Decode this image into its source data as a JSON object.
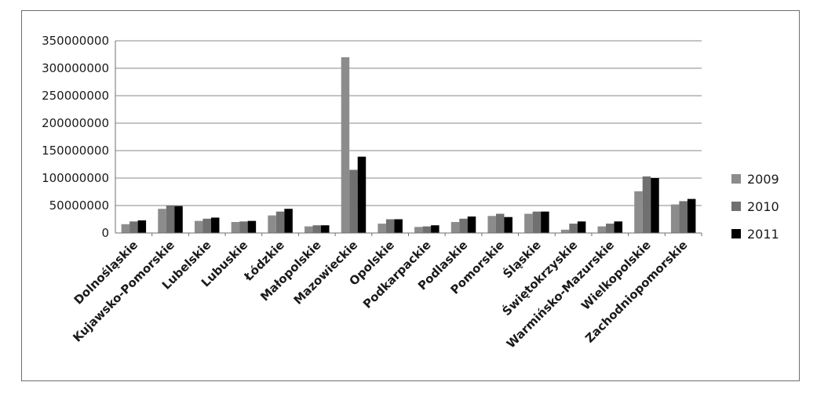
{
  "chart_data": {
    "type": "bar",
    "title": "",
    "xlabel": "",
    "ylabel": "",
    "ylim": [
      0,
      350000000
    ],
    "yticks": [
      "0",
      "50000000",
      "100000000",
      "150000000",
      "200000000",
      "250000000",
      "300000000",
      "350000000"
    ],
    "grid": true,
    "legend_position": "right",
    "categories": [
      "Dolnośląskie",
      "Kujawsko-Pomorskie",
      "Lubelskie",
      "Lubuskie",
      "Łódzkie",
      "Małopolskie",
      "Mazowieckie",
      "Opolskie",
      "Podkarpackie",
      "Podlaskie",
      "Pomorskie",
      "Śląskie",
      "Świętokrzyskie",
      "Warmińsko-Mazurskie",
      "Wielkopolskie",
      "Zachodniopomorskie"
    ],
    "series": [
      {
        "name": "2009",
        "color": "#8c8c8c",
        "values": [
          16000000,
          44000000,
          22000000,
          20000000,
          32000000,
          12000000,
          320000000,
          17000000,
          11000000,
          20000000,
          31000000,
          35000000,
          6000000,
          12000000,
          76000000,
          52000000
        ]
      },
      {
        "name": "2010",
        "color": "#707070",
        "values": [
          21000000,
          50000000,
          26000000,
          21000000,
          39000000,
          14000000,
          115000000,
          25000000,
          12000000,
          26000000,
          35000000,
          39000000,
          17000000,
          17000000,
          103000000,
          58000000
        ]
      },
      {
        "name": "2011",
        "color": "#000000",
        "values": [
          23000000,
          49000000,
          28000000,
          22000000,
          44000000,
          14000000,
          139000000,
          25000000,
          14000000,
          30000000,
          29000000,
          39000000,
          21000000,
          21000000,
          100000000,
          62000000
        ]
      }
    ]
  }
}
